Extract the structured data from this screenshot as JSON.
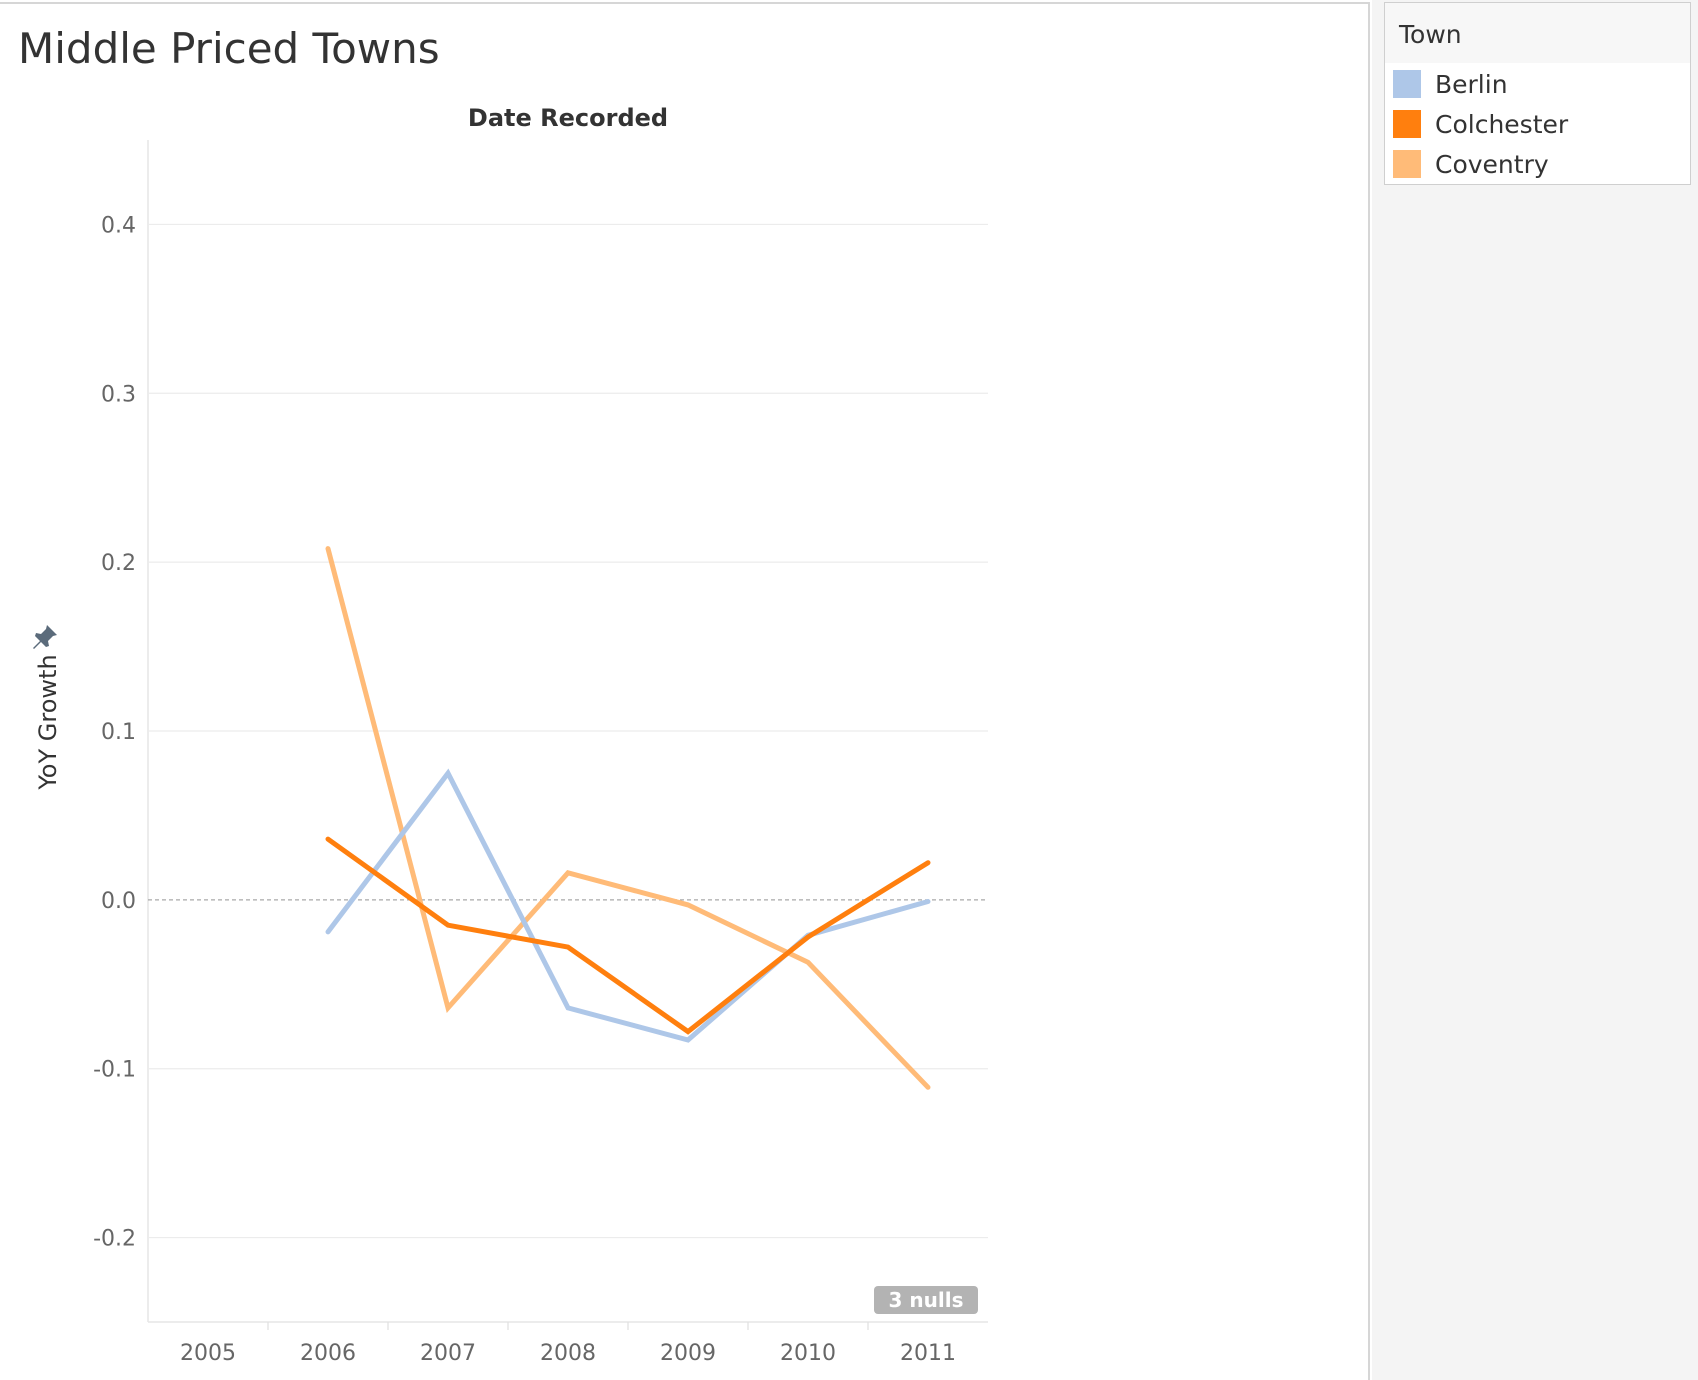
{
  "title": "Middle Priced Towns",
  "legend": {
    "title": "Town",
    "items": [
      {
        "label": "Berlin",
        "color": "#aec7e8"
      },
      {
        "label": "Colchester",
        "color": "#ff7f0e"
      },
      {
        "label": "Coventry",
        "color": "#ffbb78"
      }
    ]
  },
  "nulls_badge": "3 nulls",
  "chart_data": {
    "type": "line",
    "title": "Middle Priced Towns",
    "header": "Date Recorded",
    "xlabel": "",
    "ylabel": "YoY Growth",
    "categories": [
      "2005",
      "2006",
      "2007",
      "2008",
      "2009",
      "2010",
      "2011"
    ],
    "ylim": [
      -0.25,
      0.45
    ],
    "yticks": [
      "0.4",
      "0.3",
      "0.2",
      "0.1",
      "0.0",
      "-0.1",
      "-0.2"
    ],
    "ytick_values": [
      0.4,
      0.3,
      0.2,
      0.1,
      0.0,
      -0.1,
      -0.2
    ],
    "grid": true,
    "legend_position": "top-right",
    "series": [
      {
        "name": "Berlin",
        "color": "#aec7e8",
        "values": [
          null,
          -0.019,
          0.075,
          -0.064,
          -0.083,
          -0.021,
          -0.001
        ]
      },
      {
        "name": "Colchester",
        "color": "#ff7f0e",
        "values": [
          null,
          0.036,
          -0.015,
          -0.028,
          -0.078,
          -0.022,
          0.022
        ]
      },
      {
        "name": "Coventry",
        "color": "#ffbb78",
        "values": [
          null,
          0.208,
          -0.064,
          0.016,
          -0.003,
          -0.037,
          -0.111
        ]
      }
    ]
  }
}
